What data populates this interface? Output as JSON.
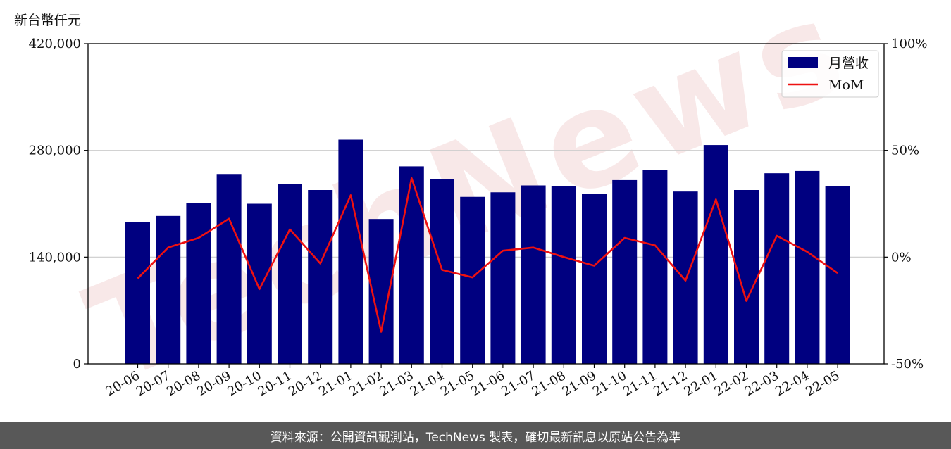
{
  "unit_label": "新台幣仟元",
  "footer": "資料來源：公開資訊觀測站，TechNews 製表，確切最新訊息以原站公告為準",
  "watermark": "TechNews",
  "colors": {
    "bar": "#000080",
    "line": "#ee1111",
    "grid": "#cccccc",
    "footer_bg": "#585858"
  },
  "chart_data": {
    "type": "bar",
    "categories": [
      "20-06",
      "20-07",
      "20-08",
      "20-09",
      "20-10",
      "20-11",
      "20-12",
      "21-01",
      "21-02",
      "21-03",
      "21-04",
      "21-05",
      "21-06",
      "21-07",
      "21-08",
      "21-09",
      "21-10",
      "21-11",
      "21-12",
      "22-01",
      "22-02",
      "22-03",
      "22-04",
      "22-05"
    ],
    "series": [
      {
        "name": "月營收",
        "type": "bar",
        "axis": "left",
        "values": [
          186000,
          194000,
          211000,
          249000,
          210000,
          236000,
          228000,
          294000,
          190000,
          259000,
          242000,
          219000,
          225000,
          234000,
          233000,
          223000,
          241000,
          254000,
          226000,
          287000,
          228000,
          250000,
          253000,
          233000
        ]
      },
      {
        "name": "MoM",
        "type": "line",
        "axis": "right",
        "values": [
          -10,
          4.5,
          9,
          18,
          -15,
          13,
          -3,
          29,
          -35,
          37,
          -6,
          -9.5,
          3,
          4.5,
          0,
          -4,
          9,
          5.5,
          -11,
          27,
          -20.5,
          10,
          2.5,
          -7.5
        ]
      }
    ],
    "y_left": {
      "ticks": [
        "0",
        "140,000",
        "280,000",
        "420,000"
      ],
      "lim": [
        0,
        420000
      ]
    },
    "y_right": {
      "ticks": [
        "-50%",
        "0%",
        "50%",
        "100%"
      ],
      "lim": [
        -50,
        100
      ]
    },
    "grid": "horizontal",
    "legend": "top-right"
  }
}
